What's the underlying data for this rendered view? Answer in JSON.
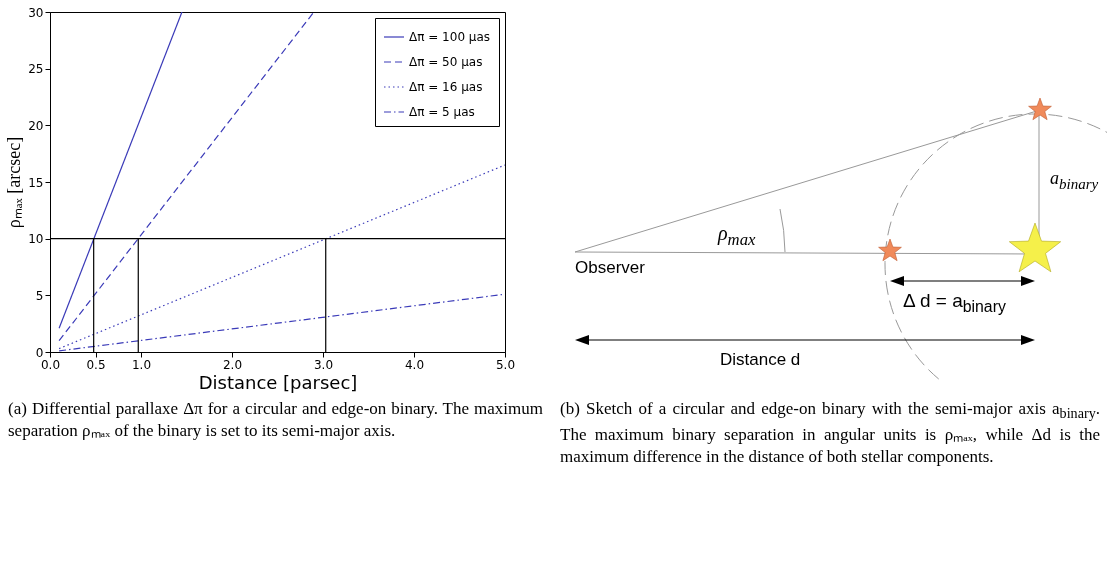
{
  "chart_data": [
    {
      "type": "line",
      "xlabel": "Distance [parsec]",
      "ylabel": "ρₘₐₓ [arcsec]",
      "xlim": [
        0,
        5
      ],
      "ylim": [
        0,
        30
      ],
      "xticks": [
        {
          "value": 0,
          "label": "0.0"
        },
        {
          "value": 0.5,
          "label": "0.5"
        },
        {
          "value": 1,
          "label": "1.0"
        },
        {
          "value": 2,
          "label": "2.0"
        },
        {
          "value": 3,
          "label": "3.0"
        },
        {
          "value": 4,
          "label": "4.0"
        },
        {
          "value": 5,
          "label": "5.0"
        }
      ],
      "yticks": [
        0,
        5,
        10,
        15,
        20,
        25,
        30
      ],
      "grid": false,
      "legend": "top right",
      "marker": "none",
      "series": [
        {
          "name": "Δπ = 100 μas",
          "color": "#3a3ab8",
          "line_style": "solid",
          "x": [
            0.1,
            1.45
          ],
          "values": [
            2.1,
            30
          ]
        },
        {
          "name": "Δπ = 50 μas",
          "color": "#3a3ab8",
          "line_style": "dashed",
          "x": [
            0.1,
            2.9
          ],
          "values": [
            1.0,
            30
          ]
        },
        {
          "name": "Δπ = 16 μas",
          "color": "#3a3ab8",
          "line_style": "dotted",
          "x": [
            0.1,
            5
          ],
          "values": [
            0.3,
            16.5
          ]
        },
        {
          "name": "Δπ = 5 μas",
          "color": "#3a3ab8",
          "line_style": "dashdot",
          "x": [
            0.1,
            5
          ],
          "values": [
            0.1,
            5.1
          ]
        },
        {
          "color": "#000000",
          "line_style": "solid",
          "x": [
            0.48,
            0.48
          ],
          "values": [
            0,
            10
          ]
        },
        {
          "color": "#000000",
          "line_style": "solid",
          "x": [
            0.97,
            0.97
          ],
          "values": [
            0,
            10
          ]
        },
        {
          "color": "#000000",
          "line_style": "solid",
          "x": [
            3.03,
            3.03
          ],
          "values": [
            0,
            10
          ]
        }
      ],
      "ref_lines": [
        {
          "axis": "y",
          "value": 10,
          "color": "#000000"
        }
      ],
      "annotations": [
        "(a) Differential parallaxe Δπ for a circular and edge-on binary. The maximum separation ρₘₐₓ of the binary is set to its semi-major axis."
      ]
    },
    {
      "type": "other",
      "annotations": [
        "ρ$_{max}$",
        "Observer",
        "a$_{binary}$",
        "Δ d = a$_{binary}$",
        "Distance d",
        "(b) Sketch of a circular and edge-on binary with the semi-major axis a$_{binary}$. The maximum binary separation in angular units is ρₘₐₓ, while Δd is the maximum difference in the distance of both stellar components."
      ]
    }
  ]
}
